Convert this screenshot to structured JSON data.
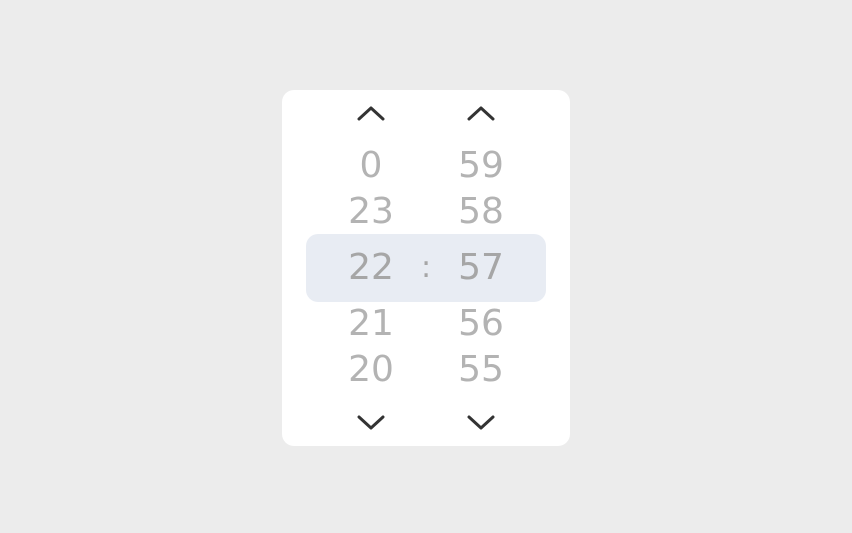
{
  "picker": {
    "separator": ":",
    "hours": {
      "values": [
        "0",
        "23",
        "22",
        "21",
        "20"
      ],
      "selected": "22",
      "up_icon": "chevron-up-icon",
      "down_icon": "chevron-down-icon"
    },
    "minutes": {
      "values": [
        "59",
        "58",
        "57",
        "56",
        "55"
      ],
      "selected": "57",
      "up_icon": "chevron-up-icon",
      "down_icon": "chevron-down-icon"
    }
  },
  "colors": {
    "background": "#ececec",
    "panel": "#ffffff",
    "selection_band": "#e8ecf3",
    "value_text": "#b3b3b3",
    "selected_text": "#a6a6a6",
    "arrow": "#333333"
  }
}
